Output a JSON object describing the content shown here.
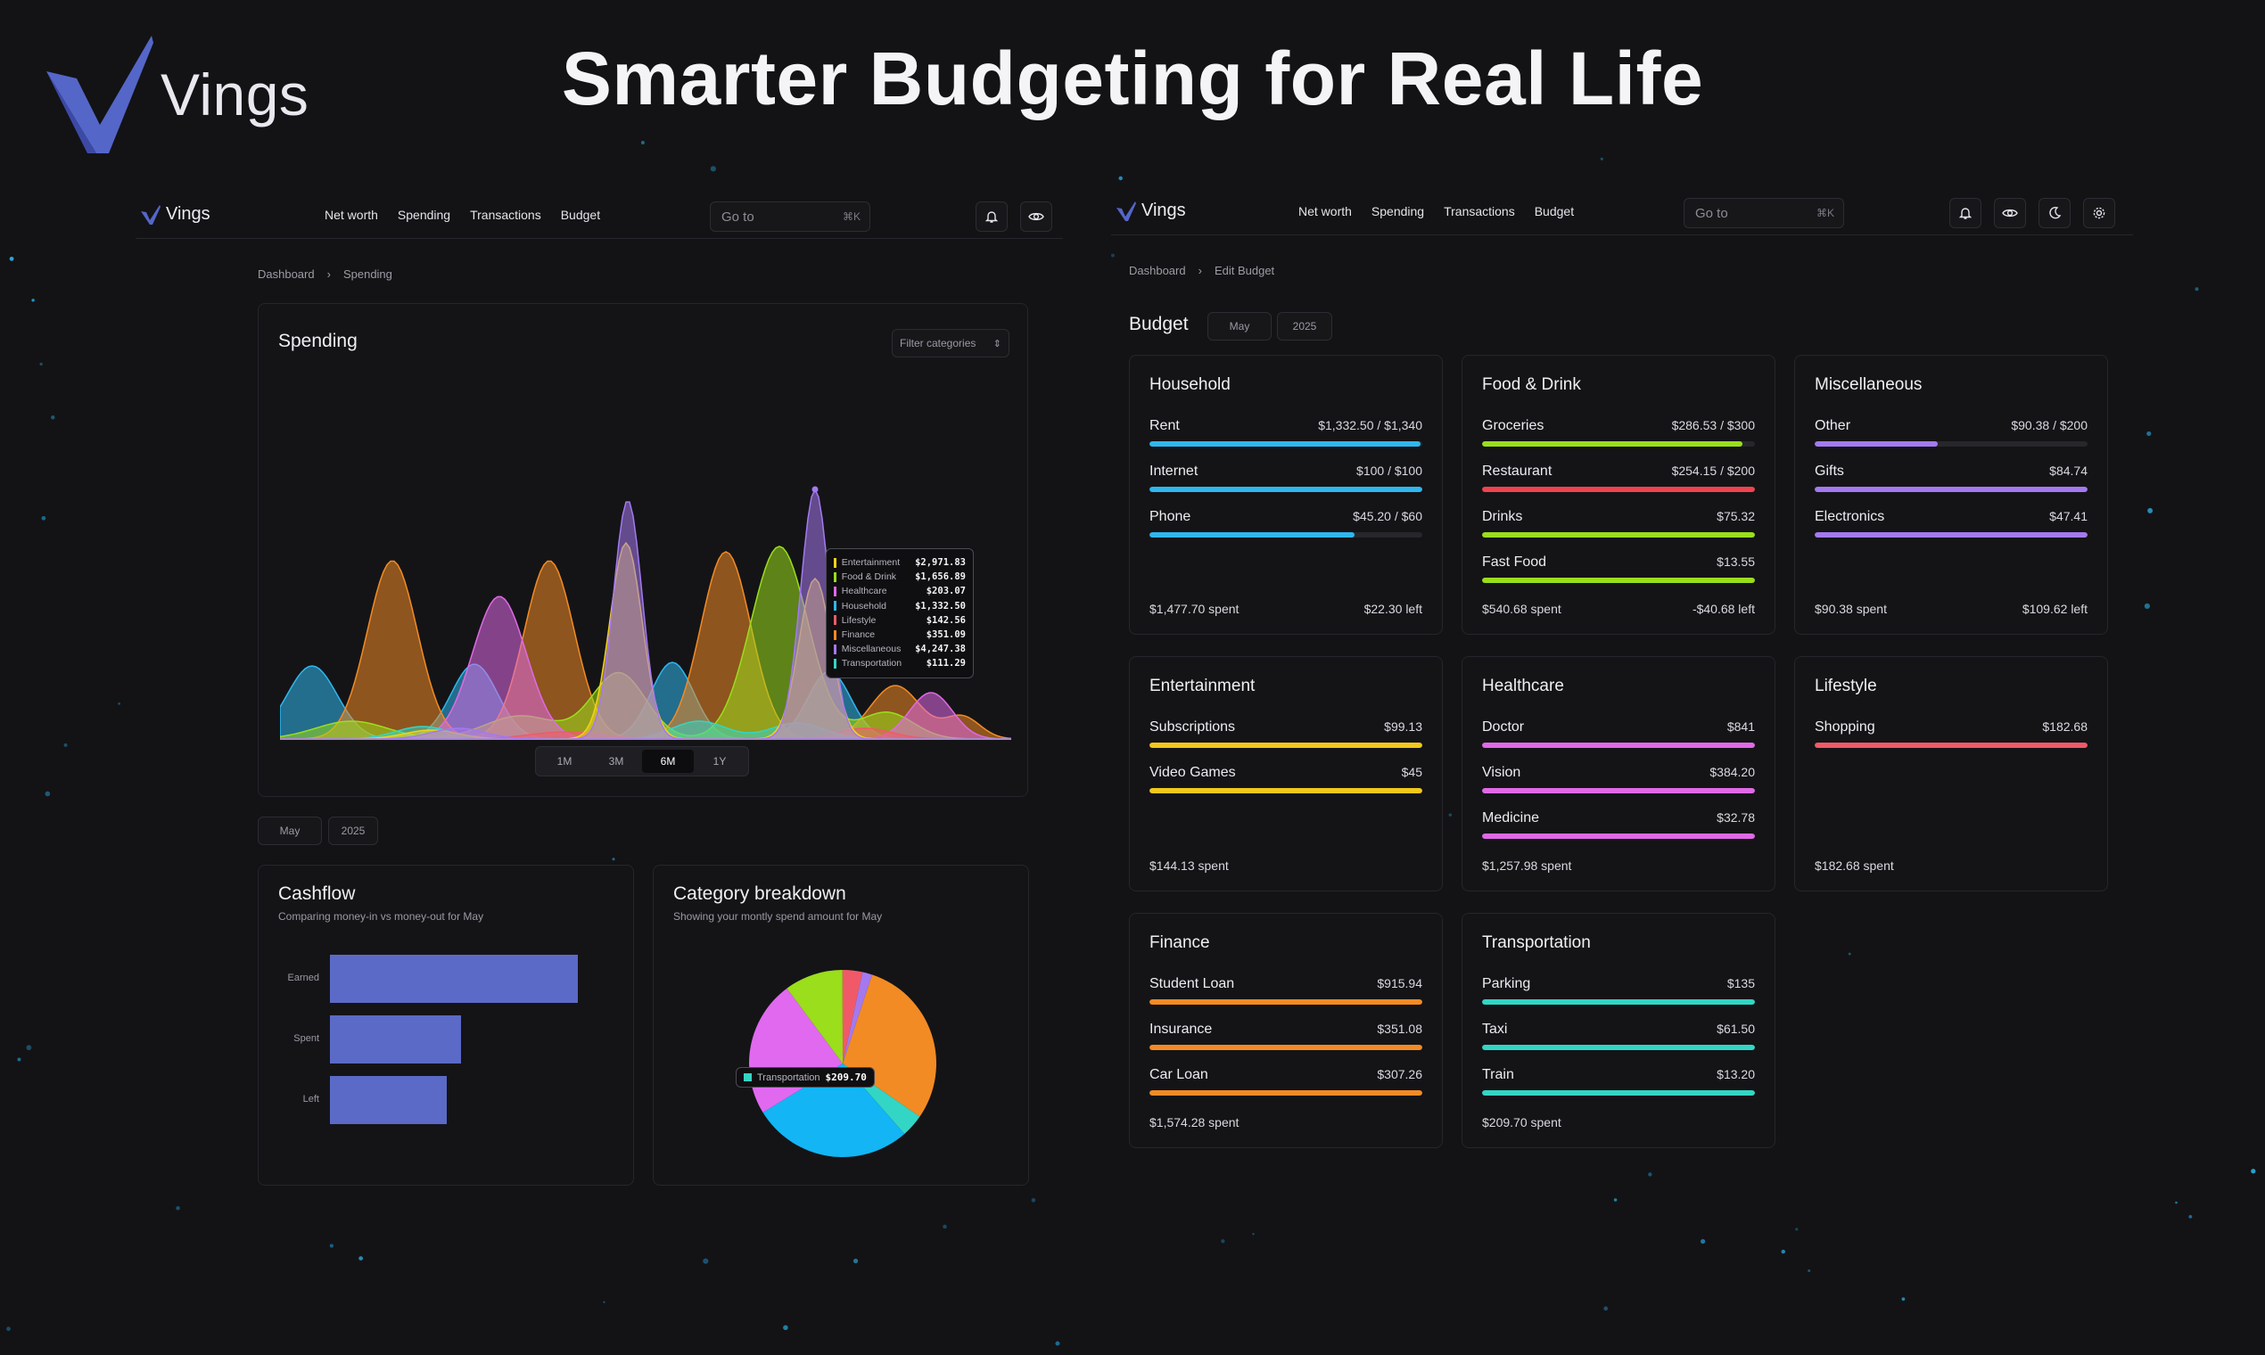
{
  "brand": {
    "name": "Vings"
  },
  "hero": {
    "title": "Smarter Budgeting for Real Life"
  },
  "nav": {
    "logo": "Vings",
    "links": [
      "Net worth",
      "Spending",
      "Transactions",
      "Budget"
    ],
    "goto_placeholder": "Go to",
    "goto_shortcut": "⌘K"
  },
  "spending_panel": {
    "breadcrumb": [
      "Dashboard",
      "Spending"
    ],
    "title": "Spending",
    "filter_label": "Filter categories",
    "ranges": [
      "1M",
      "3M",
      "6M",
      "1Y"
    ],
    "active_range": "6M",
    "month": "May",
    "year": "2025",
    "tooltip": [
      {
        "name": "Entertainment",
        "value": "$2,971.83",
        "color": "#f2d21b"
      },
      {
        "name": "Food & Drink",
        "value": "$1,656.89",
        "color": "#9ade1c"
      },
      {
        "name": "Healthcare",
        "value": "$203.07",
        "color": "#e069e6"
      },
      {
        "name": "Household",
        "value": "$1,332.50",
        "color": "#2fb7ee"
      },
      {
        "name": "Lifestyle",
        "value": "$142.56",
        "color": "#f05a68"
      },
      {
        "name": "Finance",
        "value": "$351.09",
        "color": "#f38b24"
      },
      {
        "name": "Miscellaneous",
        "value": "$4,247.38",
        "color": "#a479ef"
      },
      {
        "name": "Transportation",
        "value": "$111.29",
        "color": "#33d6c4"
      }
    ],
    "cashflow": {
      "title": "Cashflow",
      "subtitle": "Comparing money-in vs money-out for May",
      "rows": [
        {
          "label": "Earned",
          "value": 100
        },
        {
          "label": "Spent",
          "value": 53
        },
        {
          "label": "Left",
          "value": 47
        }
      ]
    },
    "breakdown": {
      "title": "Category breakdown",
      "subtitle": "Showing your montly spend amount for May",
      "tip_name": "Transportation",
      "tip_value": "$209.70"
    }
  },
  "chart_data": [
    {
      "type": "area",
      "title": "Spending",
      "categories": [
        "Household",
        "Finance",
        "Food & Drink",
        "Healthcare",
        "Miscellaneous",
        "Entertainment",
        "Lifestyle",
        "Transportation"
      ],
      "colors": [
        "#2fb7ee",
        "#f38b24",
        "#9ade1c",
        "#e069e6",
        "#a479ef",
        "#f2d21b",
        "#f05a68",
        "#33d6c4"
      ]
    },
    {
      "type": "bar",
      "title": "Cashflow",
      "categories": [
        "Earned",
        "Spent",
        "Left"
      ],
      "values": [
        100,
        53,
        47
      ]
    },
    {
      "type": "pie",
      "title": "Category breakdown",
      "slices": [
        {
          "name": "Finance",
          "value": 1574.28,
          "color": "#f38b24"
        },
        {
          "name": "Transportation",
          "value": 209.7,
          "color": "#33d6c4"
        },
        {
          "name": "Household",
          "value": 1477.7,
          "color": "#13b5f5"
        },
        {
          "name": "Healthcare",
          "value": 1257.98,
          "color": "#e069f0"
        },
        {
          "name": "Food & Drink",
          "value": 540.68,
          "color": "#9ade1c"
        },
        {
          "name": "Lifestyle",
          "value": 182.68,
          "color": "#f05a68"
        },
        {
          "name": "Miscellaneous",
          "value": 90.38,
          "color": "#a479ef"
        }
      ]
    }
  ],
  "budget_panel": {
    "breadcrumb": [
      "Dashboard",
      "Edit Budget"
    ],
    "title": "Budget",
    "month": "May",
    "year": "2025",
    "cards": [
      {
        "title": "Household",
        "color": "#2fb7ee",
        "items": [
          {
            "label": "Rent",
            "amount": "$1,332.50 / $1,340",
            "pct": 99.4
          },
          {
            "label": "Internet",
            "amount": "$100 / $100",
            "pct": 100
          },
          {
            "label": "Phone",
            "amount": "$45.20 / $60",
            "pct": 75
          }
        ],
        "spent": "$1,477.70 spent",
        "left": "$22.30 left"
      },
      {
        "title": "Food & Drink",
        "color": "#9ade1c",
        "items": [
          {
            "label": "Groceries",
            "amount": "$286.53 / $300",
            "pct": 95.5
          },
          {
            "label": "Restaurant",
            "amount": "$254.15 / $200",
            "pct": 100,
            "color": "#f0434d"
          },
          {
            "label": "Drinks",
            "amount": "$75.32",
            "pct": 100
          },
          {
            "label": "Fast Food",
            "amount": "$13.55",
            "pct": 100
          }
        ],
        "spent": "$540.68 spent",
        "left": "-$40.68 left"
      },
      {
        "title": "Miscellaneous",
        "color": "#a479ef",
        "items": [
          {
            "label": "Other",
            "amount": "$90.38 / $200",
            "pct": 45
          },
          {
            "label": "Gifts",
            "amount": "$84.74",
            "pct": 100
          },
          {
            "label": "Electronics",
            "amount": "$47.41",
            "pct": 100
          }
        ],
        "spent": "$90.38 spent",
        "left": "$109.62 left"
      },
      {
        "title": "Entertainment",
        "color": "#f2c81b",
        "items": [
          {
            "label": "Subscriptions",
            "amount": "$99.13",
            "pct": 100
          },
          {
            "label": "Video Games",
            "amount": "$45",
            "pct": 100
          }
        ],
        "spent": "$144.13 spent",
        "left": ""
      },
      {
        "title": "Healthcare",
        "color": "#e069e6",
        "items": [
          {
            "label": "Doctor",
            "amount": "$841",
            "pct": 100
          },
          {
            "label": "Vision",
            "amount": "$384.20",
            "pct": 100
          },
          {
            "label": "Medicine",
            "amount": "$32.78",
            "pct": 100
          }
        ],
        "spent": "$1,257.98 spent",
        "left": ""
      },
      {
        "title": "Lifestyle",
        "color": "#f05a68",
        "items": [
          {
            "label": "Shopping",
            "amount": "$182.68",
            "pct": 100
          }
        ],
        "spent": "$182.68 spent",
        "left": ""
      },
      {
        "title": "Finance",
        "color": "#f38b24",
        "items": [
          {
            "label": "Student Loan",
            "amount": "$915.94",
            "pct": 100
          },
          {
            "label": "Insurance",
            "amount": "$351.08",
            "pct": 100
          },
          {
            "label": "Car Loan",
            "amount": "$307.26",
            "pct": 100
          }
        ],
        "spent": "$1,574.28 spent",
        "left": ""
      },
      {
        "title": "Transportation",
        "color": "#33d6c4",
        "items": [
          {
            "label": "Parking",
            "amount": "$135",
            "pct": 100
          },
          {
            "label": "Taxi",
            "amount": "$61.50",
            "pct": 100
          },
          {
            "label": "Train",
            "amount": "$13.20",
            "pct": 100
          }
        ],
        "spent": "$209.70 spent",
        "left": ""
      }
    ]
  }
}
